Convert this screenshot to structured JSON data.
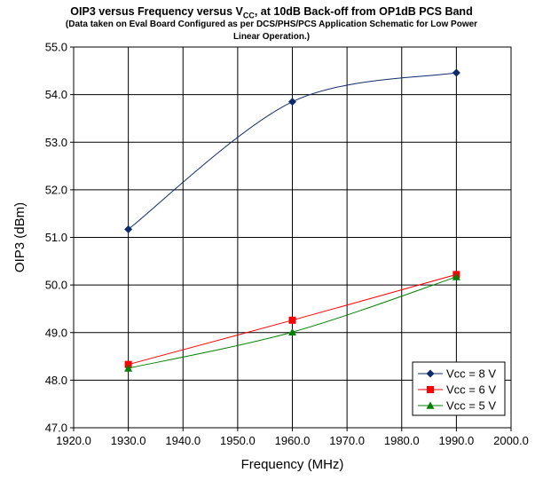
{
  "chart_data": {
    "type": "line",
    "title_main": "OIP3 versus Frequency versus V",
    "title_main_sub": "CC",
    "title_main_rest": ", at 10dB Back-off from OP1dB PCS Band",
    "subtitle_line1": "(Data taken on Eval Board Configured as per DCS/PHS/PCS Application Schematic for Low Power",
    "subtitle_line2": "Linear Operation.)",
    "xlabel": "Frequency (MHz)",
    "ylabel": "OIP3 (dBm)",
    "xlim": [
      1920.0,
      2000.0
    ],
    "ylim": [
      47.0,
      55.0
    ],
    "xticks": [
      1920.0,
      1930.0,
      1940.0,
      1950.0,
      1960.0,
      1970.0,
      1980.0,
      1990.0,
      2000.0
    ],
    "yticks": [
      47.0,
      48.0,
      49.0,
      50.0,
      51.0,
      52.0,
      53.0,
      54.0,
      55.0
    ],
    "grid": true,
    "smoothed": true,
    "legend_position": "bottom-right",
    "x": [
      1930,
      1960,
      1990
    ],
    "series": [
      {
        "name": "Vcc = 8 V",
        "values": [
          51.17,
          53.85,
          54.46
        ],
        "color": "#0d2a6b",
        "marker": "diamond"
      },
      {
        "name": "Vcc = 6 V",
        "values": [
          48.33,
          49.26,
          50.22
        ],
        "color": "#ff0000",
        "marker": "square"
      },
      {
        "name": "Vcc = 5 V",
        "values": [
          48.25,
          49.01,
          50.17
        ],
        "color": "#008000",
        "marker": "triangle"
      }
    ]
  }
}
